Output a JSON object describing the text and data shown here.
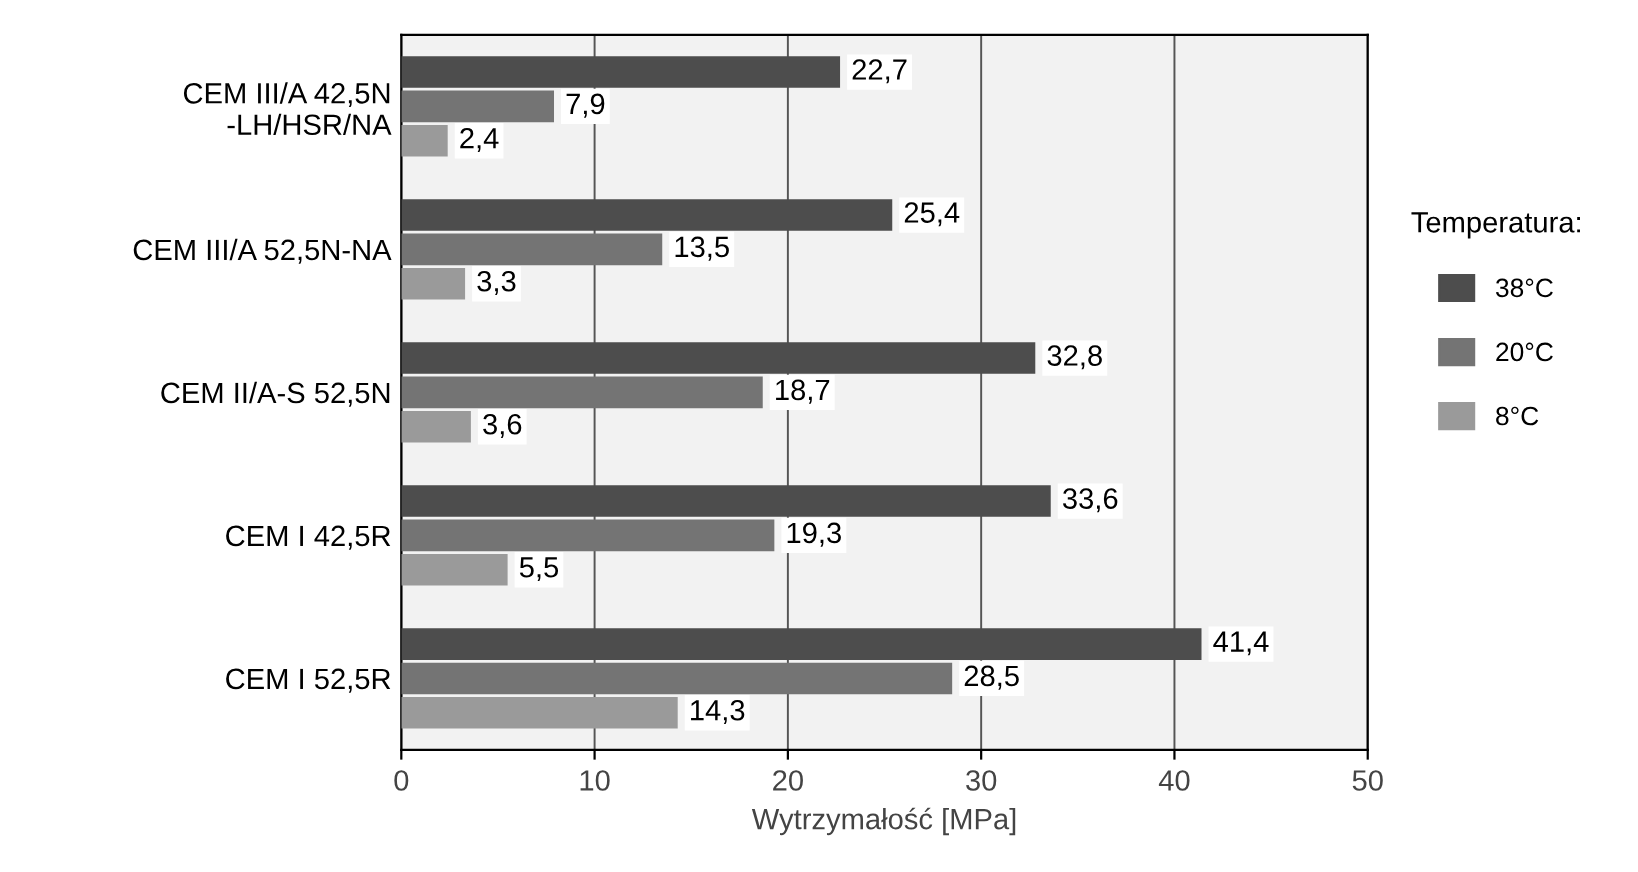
{
  "chart_data": {
    "type": "bar",
    "orientation": "horizontal",
    "categories": [
      "CEM III/A 42,5N\n-LH/HSR/NA",
      "CEM III/A 52,5N-NA",
      "CEM II/A-S 52,5N",
      "CEM I 42,5R",
      "CEM I 52,5R"
    ],
    "series": [
      {
        "name": "38°C",
        "color": "#4d4d4d",
        "values": [
          22.7,
          25.4,
          32.8,
          33.6,
          41.4
        ],
        "value_labels": [
          "22,7",
          "25,4",
          "32,8",
          "33,6",
          "41,4"
        ]
      },
      {
        "name": "20°C",
        "color": "#747474",
        "values": [
          7.9,
          13.5,
          18.7,
          19.3,
          28.5
        ],
        "value_labels": [
          "7,9",
          "13,5",
          "18,7",
          "19,3",
          "28,5"
        ]
      },
      {
        "name": "8°C",
        "color": "#9a9a9a",
        "values": [
          2.4,
          3.3,
          3.6,
          5.5,
          14.3
        ],
        "value_labels": [
          "2,4",
          "3,3",
          "3,6",
          "5,5",
          "14,3"
        ]
      }
    ],
    "xlabel": "Wytrzymałość [MPa]",
    "legend_title": "Temperatura:",
    "xlim": [
      0,
      50
    ],
    "xticks": [
      0,
      10,
      20,
      30,
      40,
      50
    ],
    "grid": "x",
    "legend": "right"
  }
}
